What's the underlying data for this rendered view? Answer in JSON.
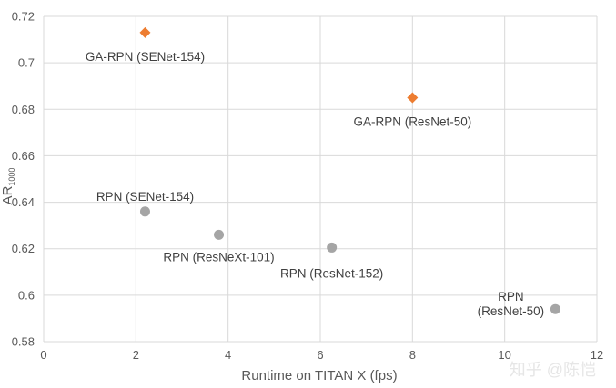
{
  "chart_data": {
    "type": "scatter",
    "title": "",
    "xlabel": "Runtime on TITAN X (fps)",
    "ylabel_main": "AR",
    "ylabel_sub": "1000",
    "xlim": [
      0,
      12
    ],
    "ylim": [
      0.58,
      0.72
    ],
    "x_ticks": [
      "0",
      "2",
      "4",
      "6",
      "8",
      "10",
      "12"
    ],
    "y_ticks": [
      "0.58",
      "0.6",
      "0.62",
      "0.64",
      "0.66",
      "0.68",
      "0.7",
      "0.72"
    ],
    "grid": true,
    "points": [
      {
        "label_lines": [
          "GA-RPN (SENet-154)"
        ],
        "x": 2.2,
        "y": 0.713,
        "color": "#ED7D31",
        "marker": "diamond"
      },
      {
        "label_lines": [
          "GA-RPN (ResNet-50)"
        ],
        "x": 8.0,
        "y": 0.685,
        "color": "#ED7D31",
        "marker": "diamond"
      },
      {
        "label_lines": [
          "RPN (SENet-154)"
        ],
        "x": 2.2,
        "y": 0.636,
        "color": "#A5A5A5",
        "marker": "circle"
      },
      {
        "label_lines": [
          "RPN (ResNeXt-101)"
        ],
        "x": 3.8,
        "y": 0.626,
        "color": "#A5A5A5",
        "marker": "circle"
      },
      {
        "label_lines": [
          "RPN (ResNet-152)"
        ],
        "x": 6.25,
        "y": 0.6205,
        "color": "#A5A5A5",
        "marker": "circle"
      },
      {
        "label_lines": [
          "RPN",
          "(ResNet-50)"
        ],
        "x": 11.1,
        "y": 0.594,
        "color": "#A5A5A5",
        "marker": "circle"
      }
    ]
  },
  "watermark": "知乎 @陈恺"
}
